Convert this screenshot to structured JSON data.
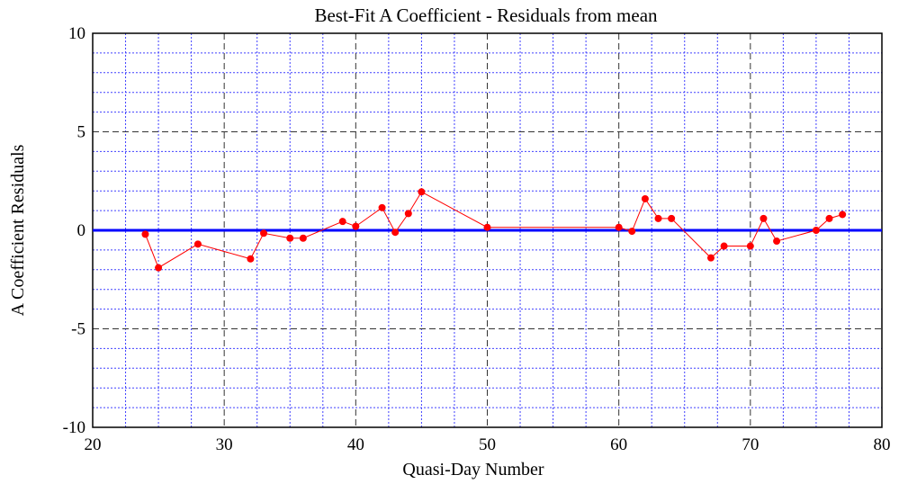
{
  "chart_data": {
    "type": "line",
    "title": "Best-Fit A Coefficient - Residuals from mean",
    "x_label": "Quasi-Day Number",
    "y_label": "A Coefficient Residuals",
    "x": [
      24,
      25,
      28,
      32,
      33,
      35,
      36,
      39,
      40,
      42,
      43,
      44,
      45,
      50,
      60,
      61,
      62,
      63,
      64,
      67,
      68,
      70,
      71,
      72,
      75,
      76,
      77
    ],
    "series": [
      {
        "name": "Residuals",
        "color": "#ff0000",
        "values": [
          -0.2,
          -1.9,
          -0.7,
          -1.45,
          -0.15,
          -0.4,
          -0.4,
          0.45,
          0.2,
          1.15,
          -0.1,
          0.85,
          1.95,
          0.15,
          0.15,
          -0.05,
          1.6,
          0.6,
          0.6,
          -1.4,
          -0.8,
          -0.8,
          0.6,
          -0.55,
          0,
          0.6,
          0.8
        ]
      }
    ],
    "xlim": [
      20,
      80
    ],
    "ylim": [
      -10,
      10
    ],
    "xticks": [
      20,
      30,
      40,
      50,
      60,
      70,
      80
    ],
    "yticks": [
      -10,
      -5,
      0,
      5,
      10
    ],
    "grid": true,
    "reference_line": {
      "value": 0,
      "color": "#0000ff"
    }
  }
}
